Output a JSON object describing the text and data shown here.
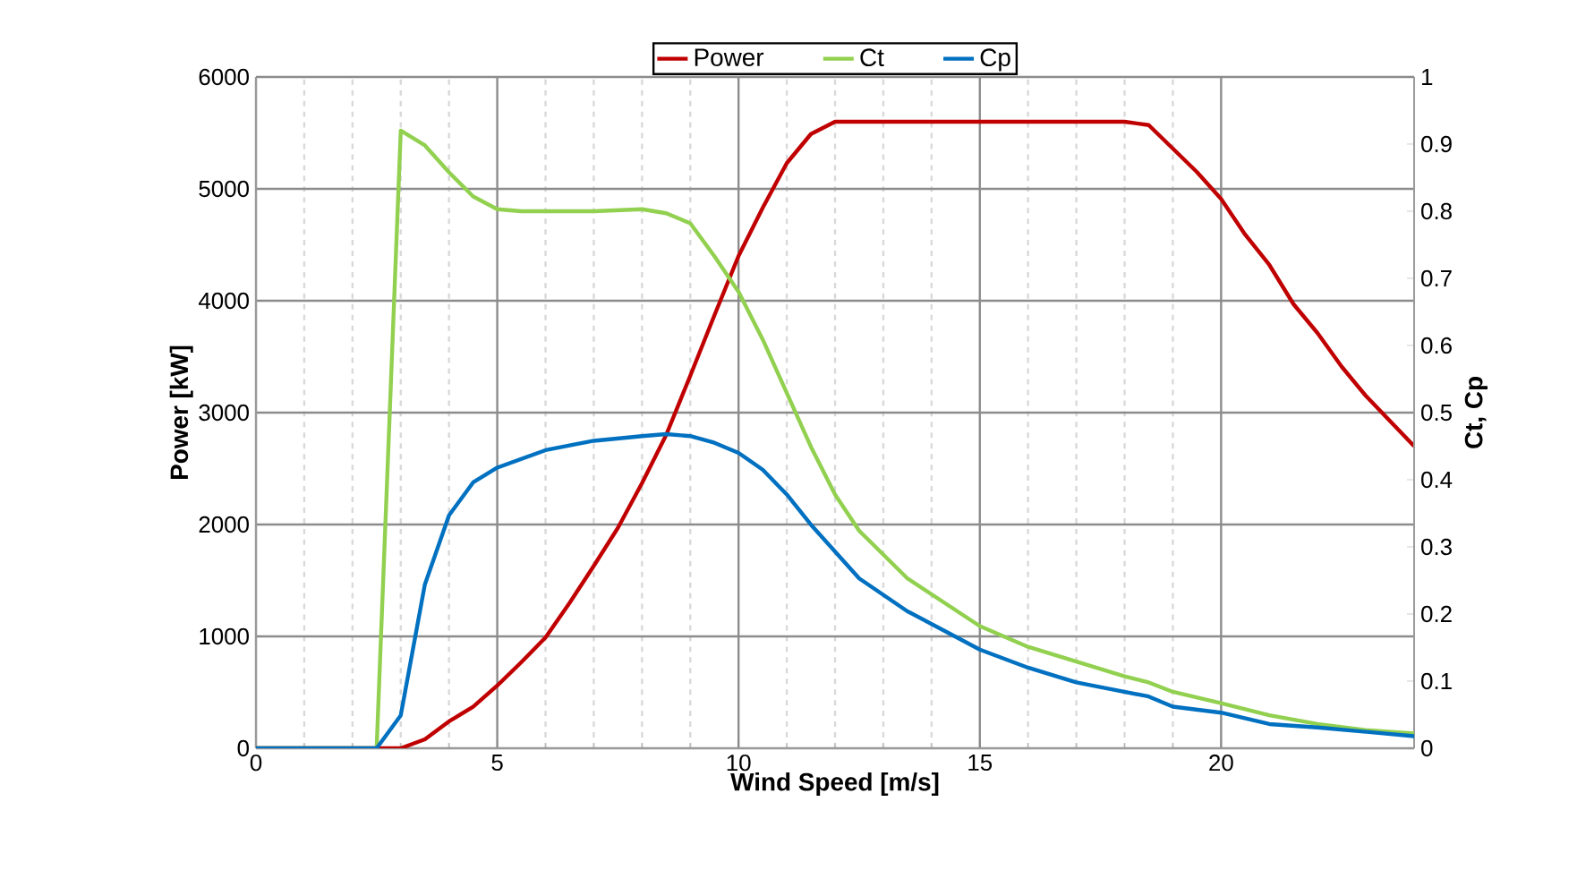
{
  "chart_data": {
    "type": "line",
    "xlabel": "Wind Speed [m/s]",
    "ylabel": "Power [kW]",
    "y2label": "Ct, Cp",
    "xlim": [
      0,
      24
    ],
    "xticks": [
      0,
      5,
      10,
      15,
      20
    ],
    "ylim": [
      0,
      6000
    ],
    "yticks": [
      0,
      1000,
      2000,
      3000,
      4000,
      5000,
      6000
    ],
    "y2lim": [
      0,
      1
    ],
    "y2ticks": [
      0,
      0.1,
      0.2,
      0.3,
      0.4,
      0.5,
      0.6,
      0.7,
      0.8,
      0.9,
      1
    ],
    "grid": true,
    "legend": "top",
    "series": [
      {
        "name": "Power",
        "color": "#c00000",
        "x": [
          0,
          2.5,
          3,
          3.5,
          4,
          4.5,
          5,
          5.5,
          6,
          6.5,
          7,
          7.5,
          8,
          8.5,
          9,
          9.5,
          10,
          10.5,
          11,
          11.5,
          12,
          18,
          18.5,
          19,
          19.5,
          20,
          20.5,
          21,
          21.5,
          22,
          22.5,
          23,
          24
        ],
        "values": [
          0,
          0,
          0,
          80,
          240,
          370,
          560,
          770,
          990,
          1300,
          1630,
          1970,
          2370,
          2800,
          3330,
          3870,
          4400,
          4830,
          5230,
          5490,
          5600,
          5600,
          5570,
          5360,
          5150,
          4910,
          4590,
          4320,
          3970,
          3710,
          3410,
          3150,
          2700
        ]
      },
      {
        "name": "Ct",
        "color": "#92d050",
        "axis": "y2",
        "x": [
          0,
          2.5,
          3,
          3.5,
          4,
          4.5,
          5,
          5.5,
          7,
          8,
          8.5,
          9,
          9.5,
          10,
          10.5,
          11,
          11.5,
          12,
          12.5,
          13.5,
          15,
          16,
          17,
          18,
          18.5,
          19,
          20,
          21,
          22,
          23,
          24
        ],
        "values": [
          0,
          0,
          0.92,
          0.898,
          0.858,
          0.822,
          0.803,
          0.8,
          0.8,
          0.803,
          0.797,
          0.782,
          0.733,
          0.68,
          0.609,
          0.529,
          0.449,
          0.378,
          0.324,
          0.253,
          0.182,
          0.151,
          0.129,
          0.107,
          0.098,
          0.084,
          0.067,
          0.049,
          0.036,
          0.027,
          0.022
        ]
      },
      {
        "name": "Cp",
        "color": "#0070c0",
        "axis": "y2",
        "x": [
          0,
          2.5,
          3,
          3.5,
          4,
          4.5,
          5,
          6,
          7,
          8,
          8.5,
          9,
          9.5,
          10,
          10.5,
          11,
          11.5,
          12.5,
          13.5,
          15,
          16,
          17,
          18.5,
          19,
          20,
          21,
          22,
          24
        ],
        "values": [
          0,
          0,
          0.049,
          0.244,
          0.347,
          0.396,
          0.418,
          0.444,
          0.458,
          0.465,
          0.468,
          0.465,
          0.455,
          0.44,
          0.415,
          0.378,
          0.333,
          0.253,
          0.204,
          0.147,
          0.12,
          0.098,
          0.077,
          0.062,
          0.053,
          0.036,
          0.031,
          0.018
        ]
      }
    ]
  }
}
